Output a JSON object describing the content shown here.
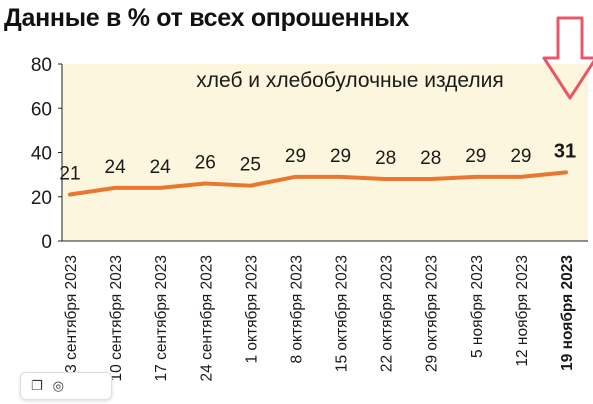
{
  "title": "Данные в % от всех опрошенных",
  "chart_data": {
    "type": "line",
    "annotation": "хлеб и хлебобулочные изделия",
    "categories": [
      "3 сентября 2023",
      "10 сентября 2023",
      "17 сентября 2023",
      "24 сентября 2023",
      "1 октября 2023",
      "8 октября 2023",
      "15 октября 2023",
      "22 октября 2023",
      "29 октября 2023",
      "5 ноября 2023",
      "12 ноября 2023",
      "19 ноября 2023"
    ],
    "series": [
      {
        "values": [
          21,
          24,
          24,
          26,
          25,
          29,
          29,
          28,
          28,
          29,
          29,
          31
        ]
      }
    ],
    "highlight_index": 11,
    "ylim": [
      0,
      80
    ],
    "yticks": [
      0,
      20,
      40,
      60,
      80
    ],
    "grid": false,
    "colors": {
      "line": "#E87830",
      "plot_bg": "#FBF6DD",
      "arrow": "#E53950",
      "text": "#1a1a1a"
    }
  },
  "toolbar": {
    "bookmark_icon": "bookmark-icon",
    "lens_icon": "lens-icon"
  }
}
